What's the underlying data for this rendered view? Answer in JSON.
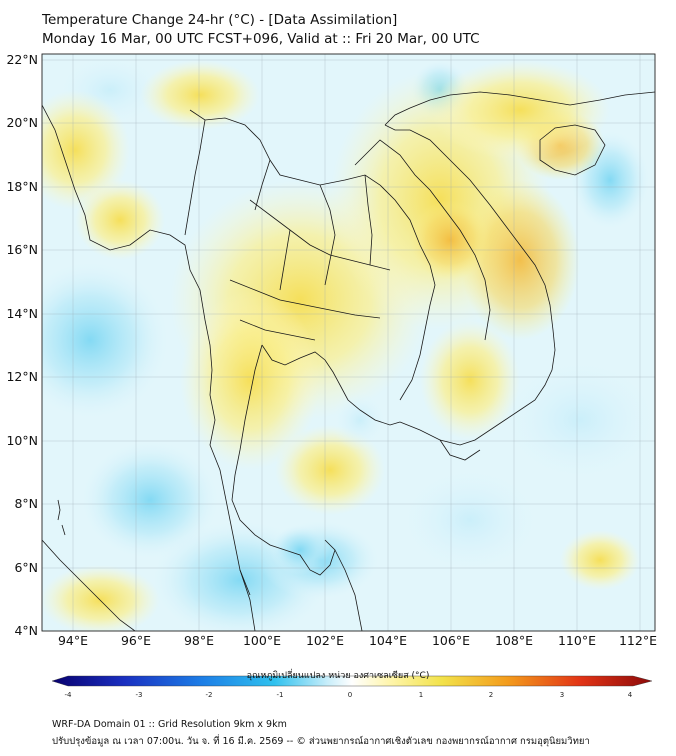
{
  "header": {
    "title_line1": "Temperature Change 24-hr (°C) - [Data Assimilation]",
    "title_line2": "Monday 16 Mar, 00 UTC FCST+096, Valid at :: Fri 20 Mar, 00 UTC"
  },
  "map": {
    "lon_range": [
      93,
      112.5
    ],
    "lat_range": [
      4,
      22.2
    ],
    "lon_ticks": [
      "94°E",
      "96°E",
      "98°E",
      "100°E",
      "102°E",
      "104°E",
      "106°E",
      "108°E",
      "110°E",
      "112°E"
    ],
    "lat_ticks": [
      "22°N",
      "20°N",
      "18°N",
      "16°N",
      "14°N",
      "12°N",
      "10°N",
      "8°N",
      "6°N",
      "4°N"
    ]
  },
  "colorbar": {
    "title": "อุณหภูมิเปลี่ยนแปลง หน่วย องศาเซลเซียส (°C)",
    "ticks": [
      "-4",
      "-3",
      "-2",
      "-1",
      "0",
      "1",
      "2",
      "3",
      "4"
    ],
    "range": [
      -4,
      4
    ],
    "colors": [
      "#08006e",
      "#1a2fc0",
      "#1d7ee6",
      "#2fc1ee",
      "#c9eefa",
      "#ffffff",
      "#fff6b0",
      "#f2e24a",
      "#f39b1c",
      "#e23416",
      "#8c0a0a"
    ]
  },
  "footer": {
    "line1": "WRF-DA Domain 01 :: Grid Resolution 9km x 9km",
    "line2": "ปรับปรุงข้อมูล ณ เวลา 07:00น. วัน จ. ที่ 16 มี.ค. 2569 -- © ส่วนพยากรณ์อากาศเชิงตัวเลข กองพยากรณ์อากาศ กรมอุตุนิยมวิทยา"
  }
}
